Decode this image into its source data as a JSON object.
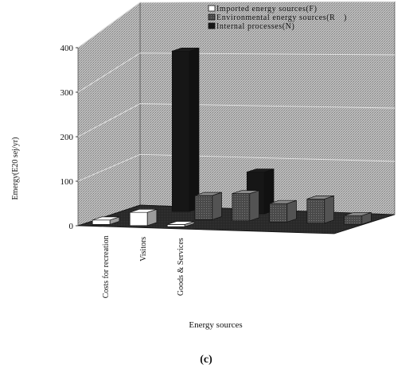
{
  "chart_data": {
    "type": "bar",
    "panel_label": "(c)",
    "xlabel": "Energy sources",
    "ylabel": "Emergy(E20 sej/yr)",
    "ylim": [
      0,
      400
    ],
    "yticks": [
      0,
      100,
      200,
      300,
      400
    ],
    "grid": true,
    "legend_position": "top",
    "categories": [
      "Costs for recreation",
      "Visitors",
      "Goods & Services",
      "",
      "",
      "",
      ""
    ],
    "series": [
      {
        "name": "Imported energy sources(F)",
        "color": "#ffffff",
        "values": [
          10,
          30,
          5,
          0,
          0,
          0,
          0
        ]
      },
      {
        "name": "Environmental energy sources(R　)",
        "color": "#6e6e6e",
        "values": [
          0,
          0,
          55,
          62,
          42,
          55,
          20
        ]
      },
      {
        "name": "Internal processes(N)",
        "color": "#161616",
        "values": [
          0,
          365,
          0,
          95,
          0,
          0,
          0
        ]
      }
    ]
  }
}
